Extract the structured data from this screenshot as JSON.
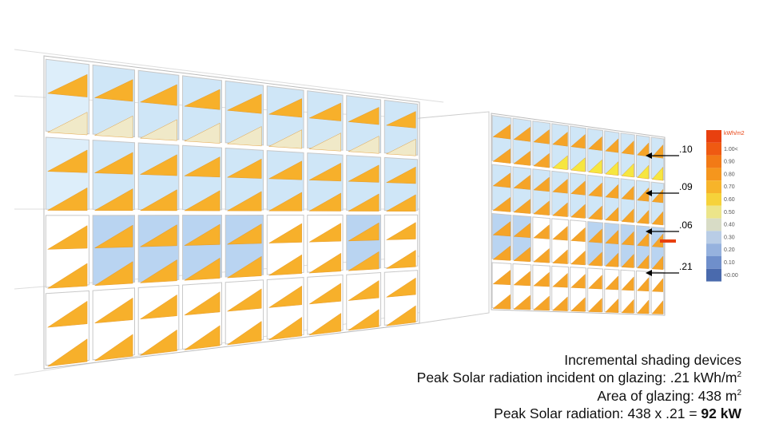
{
  "annotations": [
    ".10",
    ".09",
    ".06",
    ".21"
  ],
  "legend": {
    "title": "kWh/m2",
    "title_color": "#e8400f",
    "items": [
      {
        "label": "1.00<",
        "color": "#ef5a12"
      },
      {
        "label": "0.90",
        "color": "#f27a16"
      },
      {
        "label": "0.80",
        "color": "#f5961d"
      },
      {
        "label": "0.70",
        "color": "#f7b42a"
      },
      {
        "label": "0.60",
        "color": "#f6d23a"
      },
      {
        "label": "0.50",
        "color": "#ece58a"
      },
      {
        "label": "0.40",
        "color": "#d8dcc6"
      },
      {
        "label": "0.30",
        "color": "#b9cde6"
      },
      {
        "label": "0.20",
        "color": "#96b2de"
      },
      {
        "label": "0.10",
        "color": "#6f8fcb"
      },
      {
        "label": "<0.00",
        "color": "#4a6aad"
      }
    ]
  },
  "caption": {
    "line1": "Incremental shading devices",
    "line2": {
      "text": "Peak Solar radiation incident on glazing: .21 kWh/m",
      "sup": "2"
    },
    "line3": {
      "text": "Area of glazing: 438 m",
      "sup": "2"
    },
    "line4": {
      "text": "Peak Solar radiation: 438 x .21 = ",
      "bold": "92 kW"
    }
  }
}
